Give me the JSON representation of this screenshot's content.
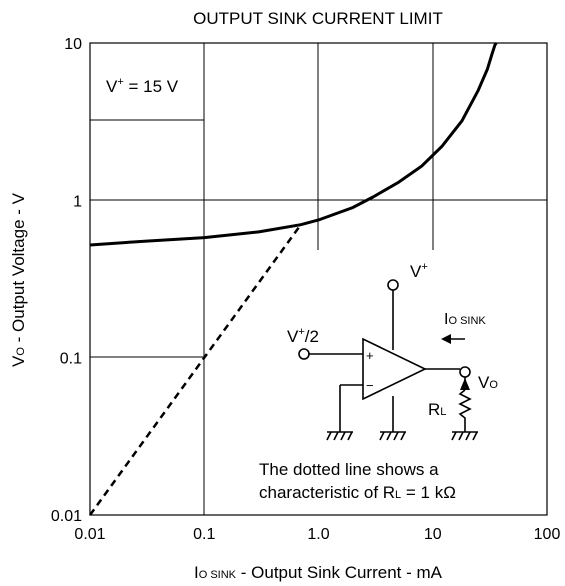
{
  "chart_data": {
    "type": "line",
    "title": "OUTPUT SINK CURRENT LIMIT",
    "xlabel_main": "I",
    "xlabel_sub": "O SINK",
    "xlabel_rest": " - Output Sink Current - mA",
    "ylabel_main": "V",
    "ylabel_sub": "O",
    "ylabel_rest": " - Output Voltage - V",
    "x_scale": "log",
    "y_scale": "log",
    "xlim": [
      0.01,
      100
    ],
    "ylim": [
      0.01,
      10
    ],
    "x_ticks": [
      0.01,
      0.1,
      1,
      10,
      100
    ],
    "x_tick_labels": [
      "0.01",
      "0.1",
      "1.0",
      "10",
      "100"
    ],
    "y_ticks": [
      0.01,
      0.1,
      1,
      10
    ],
    "y_tick_labels": [
      "0.01",
      "0.1",
      "1",
      "10"
    ],
    "grid": true,
    "condition_main": "V",
    "condition_sup": "+",
    "condition_rest": " = 15 V",
    "series": [
      {
        "style": "solid",
        "x": [
          0.01,
          0.03,
          0.1,
          0.3,
          0.7,
          1.0,
          2.0,
          3.0,
          5.0,
          8.0,
          12.0,
          18.0,
          25.0,
          30.0,
          33.0,
          35.0,
          36.0
        ],
        "y": [
          0.52,
          0.55,
          0.58,
          0.63,
          0.7,
          0.75,
          0.9,
          1.05,
          1.3,
          1.65,
          2.2,
          3.2,
          5.0,
          6.8,
          8.5,
          9.7,
          10.0
        ]
      },
      {
        "style": "dotted",
        "x": [
          0.01,
          0.7
        ],
        "y": [
          0.01,
          0.7
        ]
      }
    ],
    "inset": {
      "vplus": "V",
      "vplus_sup": "+",
      "vhalf_main": "V",
      "vhalf_sup": "+",
      "vhalf_rest": "/2",
      "plus": "+",
      "minus": "−",
      "io_main": "I",
      "io_sub": "O SINK",
      "vo_main": "V",
      "vo_sub": "O",
      "rl_main": "R",
      "rl_sub": "L"
    },
    "note_line1": "The dotted line shows a",
    "note_line2_main": "characteristic of R",
    "note_line2_sub": "L",
    "note_line2_rest": " = 1 kΩ"
  }
}
